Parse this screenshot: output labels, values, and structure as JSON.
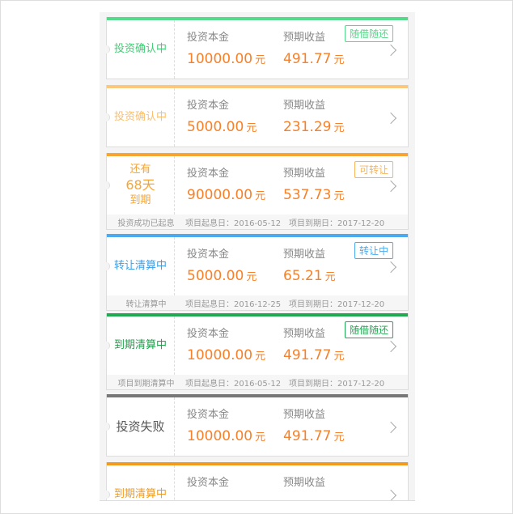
{
  "labels": {
    "principal": "投资本金",
    "expected": "预期收益",
    "unit": "元"
  },
  "cards": [
    {
      "status": "投资确认中",
      "status_color": "#3fcf74",
      "bar_color": "#55d98a",
      "principal": "10000.00",
      "expected": "491.77",
      "badge": "随借随还",
      "badge_color": "#55d98a"
    },
    {
      "status": "投资确认中",
      "status_color": "#fcbf6a",
      "bar_color": "#fcc77a",
      "principal": "5000.00",
      "expected": "231.29"
    },
    {
      "status_lines": [
        "还有",
        "68天",
        "到期"
      ],
      "status_color": "#f7a433",
      "bar_color": "#f7a433",
      "principal": "90000.00",
      "expected": "537.73",
      "badge": "可转让",
      "badge_color": "#f7b45a",
      "footer": {
        "state": "投资成功已起息",
        "start": "项目起息日：2016-05-12",
        "end": "项目到期日：2017-12-20"
      }
    },
    {
      "status": "转让清算中",
      "status_color": "#3a9ee6",
      "bar_color": "#4aaaf0",
      "principal": "5000.00",
      "expected": "65.21",
      "badge": "转让中",
      "badge_color": "#4aaaf0",
      "footer": {
        "state": "转让清算中",
        "start": "项目起息日：2016-12-25",
        "end": "项目到期日：2017-12-20"
      }
    },
    {
      "status": "到期清算中",
      "status_color": "#1f9e4a",
      "bar_color": "#1fa951",
      "principal": "10000.00",
      "expected": "491.77",
      "badge": "随借随还",
      "badge_color": "#1fa951",
      "footer": {
        "state": "项目到期清算中",
        "start": "项目起息日：2016-05-12",
        "end": "项目到期日：2017-12-20"
      }
    },
    {
      "status": "投资失败",
      "status_color": "#555555",
      "bar_color": "#777777",
      "principal": "10000.00",
      "expected": "491.77"
    },
    {
      "status": "到期清算中",
      "status_color": "#f29a1e",
      "bar_color": "#f29a1e"
    }
  ]
}
